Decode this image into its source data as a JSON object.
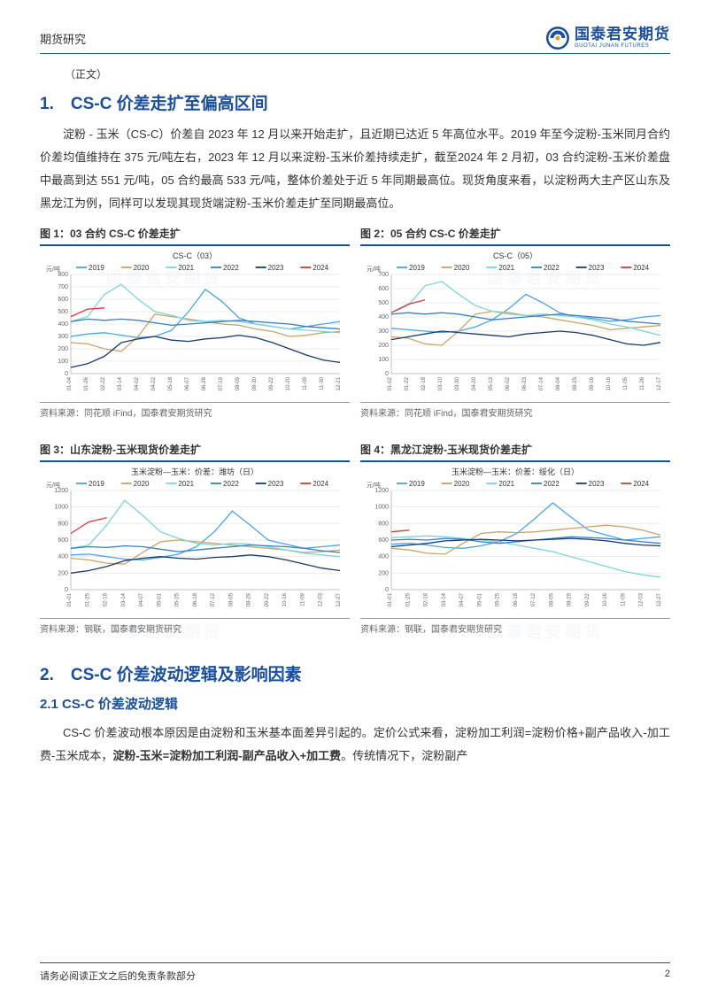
{
  "header": {
    "left": "期货研究",
    "logo_cn": "国泰君安期货",
    "logo_en": "GUOTAI JUNAN FUTURES"
  },
  "note": "（正文）",
  "section1": {
    "title": "1.　CS-C 价差走扩至偏高区间",
    "para_before": "淀粉 - 玉米（CS-C）价差自 2023 年 12 月以来开始走扩，且近期已达近 5 年高位水平。2019 年至今淀粉-玉米同月合约价差均值维持在 375 元/吨左右，2023 年 12 月以来淀粉-玉米价差持续走扩，截至2024 年 2 月初，03 合约淀粉-玉米价差盘中最高到达 551 元/吨，05 合约最高 533 元/吨，整体价差处于近 5 年同期最高位。现货角度来看，以淀粉两大主产区山东及黑龙江为例，同样可以发现其现货端淀粉-玉米价差走扩至同期最高位。"
  },
  "legend_years": [
    "2019",
    "2020",
    "2021",
    "2022",
    "2023",
    "2024"
  ],
  "legend_colors": [
    "#4aa5e8",
    "#c9a368",
    "#7fd4d4",
    "#3a7fc4",
    "#1a3a6e",
    "#d93a3a"
  ],
  "y_axis_label": "元/吨",
  "chart1": {
    "title": "图 1：03 合约 CS-C 价差走扩",
    "subtitle": "CS-C（03）",
    "source": "资料来源：同花顺 iFind，国泰君安期货研究",
    "ylim": [
      0,
      800
    ],
    "ytick_step": 100,
    "x_ticks": [
      "01-04",
      "01-26",
      "02-22",
      "03-14",
      "04-02",
      "04-22",
      "05-18",
      "06-07",
      "06-28",
      "07-19",
      "08-09",
      "08-30",
      "09-22",
      "10-20",
      "11-09",
      "11-30",
      "12-21"
    ],
    "series": {
      "2019": [
        300,
        320,
        330,
        310,
        290,
        300,
        350,
        500,
        680,
        580,
        450,
        400,
        380,
        360,
        380,
        400,
        420
      ],
      "2020": [
        250,
        240,
        200,
        180,
        300,
        480,
        460,
        440,
        420,
        400,
        390,
        360,
        340,
        300,
        310,
        330,
        340
      ],
      "2021": [
        420,
        460,
        640,
        720,
        600,
        500,
        470,
        430,
        420,
        430,
        420,
        400,
        380,
        360,
        350,
        340,
        330
      ],
      "2022": [
        420,
        440,
        430,
        440,
        430,
        410,
        390,
        400,
        410,
        420,
        430,
        420,
        410,
        400,
        380,
        370,
        360
      ],
      "2023": [
        50,
        80,
        140,
        250,
        280,
        300,
        270,
        260,
        280,
        290,
        310,
        290,
        250,
        200,
        150,
        110,
        90
      ],
      "2024": [
        460,
        520,
        530,
        null,
        null,
        null,
        null,
        null,
        null,
        null,
        null,
        null,
        null,
        null,
        null,
        null,
        null
      ]
    }
  },
  "chart2": {
    "title": "图 2：05 合约 CS-C 价差走扩",
    "subtitle": "CS-C（05）",
    "source": "资料来源：同花顺 iFind，国泰君安期货研究",
    "ylim": [
      0,
      700
    ],
    "ytick_step": 100,
    "x_ticks": [
      "01-02",
      "01-22",
      "02-18",
      "03-10",
      "03-30",
      "04-20",
      "05-13",
      "06-02",
      "06-23",
      "07-14",
      "08-04",
      "08-25",
      "09-16",
      "10-16",
      "11-05",
      "11-26",
      "12-17"
    ],
    "series": {
      "2019": [
        320,
        310,
        300,
        290,
        300,
        330,
        380,
        460,
        560,
        500,
        430,
        400,
        390,
        370,
        380,
        400,
        410
      ],
      "2020": [
        260,
        250,
        210,
        200,
        300,
        420,
        440,
        430,
        410,
        400,
        380,
        360,
        340,
        310,
        320,
        330,
        340
      ],
      "2021": [
        430,
        480,
        620,
        650,
        560,
        480,
        440,
        420,
        410,
        420,
        410,
        400,
        380,
        350,
        330,
        300,
        270
      ],
      "2022": [
        420,
        430,
        420,
        430,
        420,
        400,
        380,
        390,
        400,
        410,
        420,
        410,
        400,
        390,
        370,
        360,
        350
      ],
      "2023": [
        240,
        260,
        280,
        300,
        290,
        280,
        270,
        260,
        280,
        290,
        300,
        290,
        270,
        240,
        210,
        200,
        220
      ],
      "2024": [
        430,
        490,
        520,
        null,
        null,
        null,
        null,
        null,
        null,
        null,
        null,
        null,
        null,
        null,
        null,
        null,
        null
      ]
    }
  },
  "chart3": {
    "title": "图 3：山东淀粉-玉米现货价差走扩",
    "subtitle": "玉米淀粉—玉米：价差：潍坊（日）",
    "source": "资料来源：钢联，国泰君安期货研究",
    "ylim": [
      0,
      1200
    ],
    "ytick_step": 200,
    "x_ticks": [
      "01-01",
      "01-25",
      "02-18",
      "03-14",
      "04-07",
      "05-01",
      "05-25",
      "06-18",
      "07-12",
      "08-05",
      "08-29",
      "09-22",
      "10-16",
      "11-09",
      "12-03",
      "12-27"
    ],
    "series": {
      "2019": [
        420,
        430,
        400,
        370,
        360,
        390,
        430,
        520,
        700,
        950,
        780,
        600,
        550,
        500,
        520,
        540
      ],
      "2020": [
        380,
        360,
        320,
        310,
        450,
        580,
        600,
        580,
        560,
        540,
        520,
        500,
        480,
        450,
        460,
        480
      ],
      "2021": [
        500,
        540,
        780,
        1080,
        900,
        700,
        620,
        560,
        540,
        560,
        550,
        520,
        480,
        440,
        420,
        400
      ],
      "2022": [
        500,
        520,
        510,
        530,
        520,
        490,
        460,
        480,
        500,
        520,
        540,
        530,
        520,
        500,
        470,
        450
      ],
      "2023": [
        200,
        230,
        280,
        350,
        380,
        400,
        380,
        370,
        390,
        400,
        420,
        400,
        360,
        310,
        260,
        230
      ],
      "2024": [
        680,
        820,
        870,
        null,
        null,
        null,
        null,
        null,
        null,
        null,
        null,
        null,
        null,
        null,
        null,
        null
      ]
    }
  },
  "chart4": {
    "title": "图 4：黑龙江淀粉-玉米现货价差走扩",
    "subtitle": "玉米淀粉—玉米：价差：绥化（日）",
    "source": "资料来源：钢联，国泰君安期货研究",
    "ylim": [
      0,
      1200
    ],
    "ytick_step": 200,
    "x_ticks": [
      "01-01",
      "01-25",
      "02-18",
      "03-14",
      "04-07",
      "05-01",
      "05-25",
      "06-18",
      "07-12",
      "08-05",
      "08-29",
      "09-22",
      "10-16",
      "11-09",
      "12-03",
      "12-27"
    ],
    "series": {
      "2019": [
        550,
        560,
        540,
        510,
        500,
        530,
        580,
        680,
        860,
        1050,
        880,
        720,
        660,
        600,
        620,
        640
      ],
      "2020": [
        500,
        480,
        440,
        430,
        560,
        680,
        700,
        690,
        700,
        720,
        740,
        760,
        780,
        760,
        720,
        660
      ],
      "2021": [
        630,
        640,
        650,
        640,
        620,
        600,
        580,
        540,
        500,
        460,
        400,
        340,
        280,
        220,
        180,
        150
      ],
      "2022": [
        600,
        610,
        600,
        620,
        610,
        580,
        560,
        580,
        600,
        620,
        640,
        630,
        620,
        600,
        580,
        560
      ],
      "2023": [
        520,
        540,
        560,
        590,
        600,
        610,
        600,
        590,
        600,
        610,
        620,
        610,
        590,
        560,
        540,
        530
      ],
      "2024": [
        700,
        720,
        null,
        null,
        null,
        null,
        null,
        null,
        null,
        null,
        null,
        null,
        null,
        null,
        null,
        null
      ]
    }
  },
  "section2": {
    "title": "2.　CS-C 价差波动逻辑及影响因素",
    "sub1_title": "2.1 CS-C 价差波动逻辑",
    "para_prefix": "CS-C 价差波动根本原因是由淀粉和玉米基本面差异引起的。定价公式来看，淀粉加工利润=淀粉价格+副产品收入-加工费-玉米成本，",
    "para_bold": "淀粉-玉米=淀粉加工利润-副产品收入+加工费",
    "para_suffix": "。传统情况下，淀粉副产"
  },
  "footer": {
    "left": "请务必阅读正文之后的免责条款部分",
    "page": "2"
  },
  "watermark": "国泰君安期货"
}
